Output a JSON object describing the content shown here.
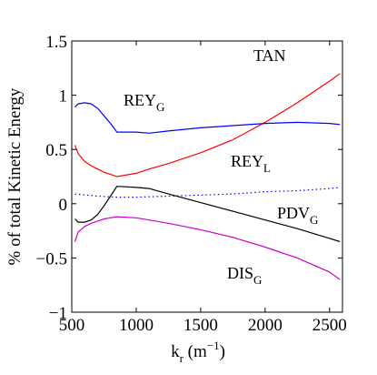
{
  "chart_data": {
    "type": "line",
    "xlabel": {
      "base": "k",
      "sub": "r",
      "unit_pre": " (m",
      "unit_sup": "−1",
      "unit_post": ")"
    },
    "ylabel": "% of total Kinetic Energy",
    "xlim": [
      500,
      2600
    ],
    "ylim": [
      -1,
      1.5
    ],
    "xticks": [
      500,
      1000,
      1500,
      2000,
      2500
    ],
    "yticks": [
      1.5,
      1,
      0.5,
      0,
      -0.5,
      -1
    ],
    "ytick_labels": [
      "1.5",
      "1",
      "0.5",
      "0",
      "−0.5",
      "−1"
    ],
    "grid": false,
    "series": [
      {
        "name": "TAN",
        "color": "#ff0000",
        "style": "solid",
        "x": [
          525,
          550,
          600,
          650,
          700,
          750,
          800,
          850,
          1000,
          1100,
          1250,
          1500,
          1750,
          2000,
          2250,
          2500,
          2580
        ],
        "y": [
          0.54,
          0.46,
          0.39,
          0.35,
          0.32,
          0.29,
          0.27,
          0.25,
          0.28,
          0.32,
          0.37,
          0.47,
          0.59,
          0.75,
          0.93,
          1.13,
          1.2
        ]
      },
      {
        "name": "REY_G",
        "color": "#0000ff",
        "style": "solid",
        "x": [
          525,
          550,
          600,
          650,
          700,
          750,
          800,
          850,
          1000,
          1100,
          1250,
          1500,
          1750,
          2000,
          2250,
          2500,
          2580
        ],
        "y": [
          0.89,
          0.92,
          0.93,
          0.92,
          0.88,
          0.81,
          0.74,
          0.66,
          0.66,
          0.65,
          0.67,
          0.7,
          0.72,
          0.74,
          0.75,
          0.74,
          0.73
        ]
      },
      {
        "name": "REY_L",
        "color": "#0000ff",
        "style": "dotted",
        "x": [
          525,
          700,
          850,
          1000,
          1250,
          1500,
          1750,
          2000,
          2250,
          2500,
          2580
        ],
        "y": [
          0.09,
          0.07,
          0.06,
          0.06,
          0.07,
          0.08,
          0.09,
          0.11,
          0.12,
          0.14,
          0.15
        ]
      },
      {
        "name": "PDV_G",
        "color": "#000000",
        "style": "solid",
        "x": [
          525,
          550,
          600,
          650,
          700,
          750,
          800,
          850,
          1000,
          1100,
          1250,
          1500,
          1750,
          2000,
          2250,
          2500,
          2580
        ],
        "y": [
          -0.14,
          -0.17,
          -0.17,
          -0.15,
          -0.1,
          -0.02,
          0.07,
          0.16,
          0.15,
          0.14,
          0.09,
          0.01,
          -0.07,
          -0.15,
          -0.23,
          -0.32,
          -0.35
        ]
      },
      {
        "name": "DIS_G",
        "color": "#cc00cc",
        "style": "solid",
        "x": [
          525,
          550,
          600,
          650,
          700,
          750,
          800,
          850,
          1000,
          1100,
          1250,
          1500,
          1750,
          2000,
          2250,
          2500,
          2580
        ],
        "y": [
          -0.35,
          -0.26,
          -0.21,
          -0.18,
          -0.16,
          -0.14,
          -0.13,
          -0.12,
          -0.13,
          -0.15,
          -0.18,
          -0.24,
          -0.31,
          -0.4,
          -0.5,
          -0.63,
          -0.7
        ]
      }
    ],
    "annotations": [
      {
        "id": "tan",
        "text": "TAN",
        "sub": ""
      },
      {
        "id": "rey-g",
        "text": "REY",
        "sub": "G"
      },
      {
        "id": "rey-l",
        "text": "REY",
        "sub": "L"
      },
      {
        "id": "pdv-g",
        "text": "PDV",
        "sub": "G"
      },
      {
        "id": "dis-g",
        "text": "DIS",
        "sub": "G"
      }
    ]
  }
}
